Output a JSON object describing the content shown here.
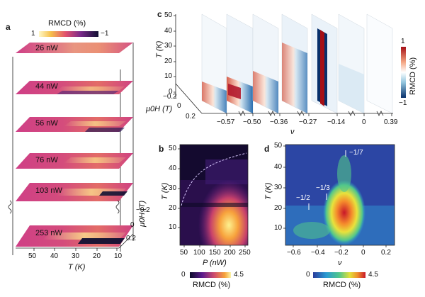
{
  "panel_a": {
    "letter": "a",
    "colorbar_title": "RMCD (%)",
    "colorbar_min": "1",
    "colorbar_max": "−1",
    "powers": [
      "26 nW",
      "44 nW",
      "56 nW",
      "76 nW",
      "103 nW",
      "253 nW"
    ],
    "x_ticks": [
      "50",
      "40",
      "30",
      "20",
      "10"
    ],
    "x_label": "T (K)",
    "field_axis_label": "μ0H (T)",
    "field_ticks": [
      "−0.2",
      "0",
      "0.2"
    ]
  },
  "panel_b": {
    "letter": "b",
    "y_ticks": [
      "50",
      "40",
      "30",
      "20",
      "10"
    ],
    "y_label": "T (K)",
    "x_ticks": [
      "50",
      "100",
      "150",
      "200",
      "250"
    ],
    "x_label": "P (nW)",
    "colorbar_min": "0",
    "colorbar_max": "4.5",
    "colorbar_label": "RMCD (%)"
  },
  "panel_c": {
    "letter": "c",
    "y_ticks": [
      "50",
      "40",
      "30",
      "20",
      "10",
      "0"
    ],
    "y_label": "T (K)",
    "field_ticks": [
      "−0.2",
      "0",
      "0.2"
    ],
    "field_label": "μ0H (T)",
    "nu_ticks": [
      "−0.57",
      "−0.50",
      "−0.36",
      "−0.27",
      "−0.14",
      "0",
      "0.39"
    ],
    "nu_label": "ν",
    "colorbar_max": "1",
    "colorbar_min": "−1",
    "colorbar_label": "RMCD (%)"
  },
  "panel_d": {
    "letter": "d",
    "y_ticks": [
      "50",
      "40",
      "30",
      "20",
      "10"
    ],
    "y_label": "T (K)",
    "x_ticks": [
      "−0.6",
      "−0.4",
      "−0.2",
      "0",
      "0.2"
    ],
    "x_label": "ν",
    "annotations": [
      "−1/2",
      "−1/3",
      "−1/7"
    ],
    "colorbar_min": "0",
    "colorbar_max": "4.5",
    "colorbar_label": "RMCD (%)"
  }
}
